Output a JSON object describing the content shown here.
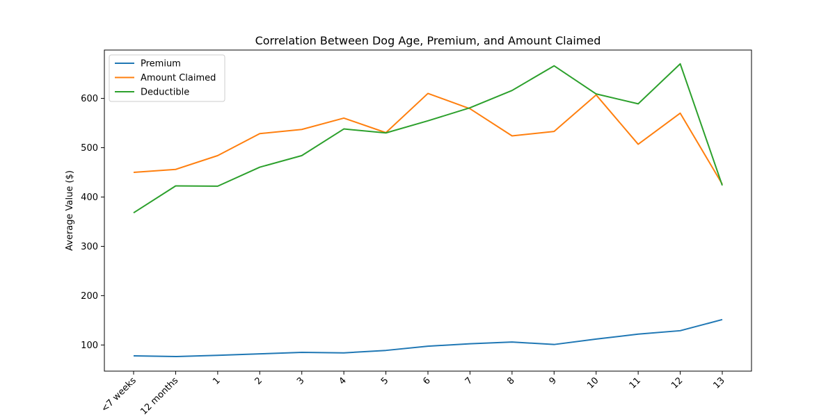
{
  "chart_data": {
    "type": "line",
    "title": "Correlation Between Dog Age, Premium, and Amount Claimed",
    "xlabel": "",
    "ylabel": "Average Value ($)",
    "categories": [
      "<7 weeks",
      "12 months",
      "1",
      "2",
      "3",
      "4",
      "5",
      "6",
      "7",
      "8",
      "9",
      "10",
      "11",
      "12",
      "13"
    ],
    "y_ticks": [
      100,
      200,
      300,
      400,
      500,
      600
    ],
    "ylim": [
      47,
      698
    ],
    "grid": false,
    "legend_position": "upper left",
    "series": [
      {
        "name": "Premium",
        "color": "#1f77b4",
        "values": [
          78,
          76.5,
          79,
          82,
          85,
          84,
          89,
          97.5,
          102.5,
          106,
          101,
          112,
          122,
          129,
          151.5
        ]
      },
      {
        "name": "Amount Claimed",
        "color": "#ff7f0e",
        "values": [
          450,
          456,
          484,
          528.5,
          537,
          560,
          530.5,
          610,
          579,
          524,
          533,
          607,
          507,
          570,
          426
        ]
      },
      {
        "name": "Deductible",
        "color": "#2ca02c",
        "values": [
          368,
          422.5,
          422,
          460.5,
          484,
          538,
          530,
          554.5,
          581,
          616,
          666,
          609,
          589,
          670,
          423.5
        ]
      }
    ]
  }
}
